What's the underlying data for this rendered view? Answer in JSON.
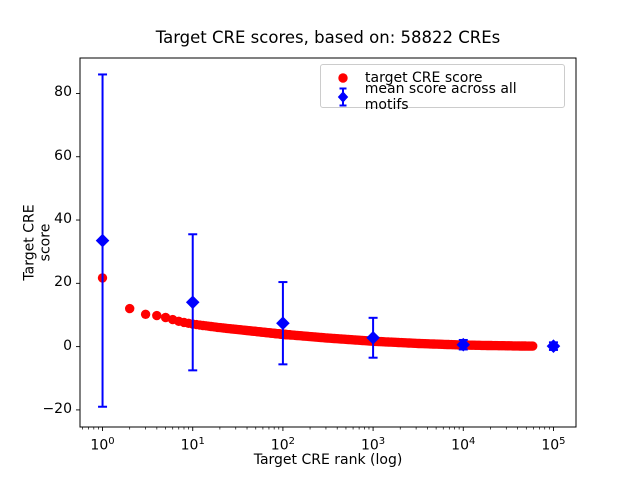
{
  "chart_data": {
    "type": "scatter",
    "title": "Target CRE scores, based on: 58822 CREs",
    "xlabel": "Target CRE rank (log)",
    "ylabel": "Target CRE score",
    "x_scale": "log10",
    "xlim_log10": [
      -0.25,
      5.25
    ],
    "ylim": [
      -25.4,
      91.2
    ],
    "grid": false,
    "legend_position": "upper right",
    "x_major_ticks": [
      {
        "value": 1,
        "mantissa": "10",
        "exponent": "0"
      },
      {
        "value": 10,
        "mantissa": "10",
        "exponent": "1"
      },
      {
        "value": 100,
        "mantissa": "10",
        "exponent": "2"
      },
      {
        "value": 1000,
        "mantissa": "10",
        "exponent": "3"
      },
      {
        "value": 10000,
        "mantissa": "10",
        "exponent": "4"
      },
      {
        "value": 100000,
        "mantissa": "10",
        "exponent": "5"
      }
    ],
    "y_ticks": [
      {
        "value": -20,
        "label": "−20"
      },
      {
        "value": 0,
        "label": "0"
      },
      {
        "value": 20,
        "label": "20"
      },
      {
        "value": 40,
        "label": "40"
      },
      {
        "value": 60,
        "label": "60"
      },
      {
        "value": 80,
        "label": "80"
      }
    ],
    "series": [
      {
        "name": "target CRE score",
        "type": "scatter",
        "marker": "circle",
        "color": "#ff0000",
        "marker_radius_px": 4.7,
        "rank_min": 1,
        "rank_max": 58822,
        "anchors_log10rank_score": [
          [
            0.0,
            21.7
          ],
          [
            0.301,
            12.0
          ],
          [
            0.477,
            10.2
          ],
          [
            0.602,
            9.8
          ],
          [
            0.699,
            9.2
          ],
          [
            0.845,
            8.0
          ],
          [
            1.0,
            7.1
          ],
          [
            1.3,
            6.0
          ],
          [
            1.7,
            4.8
          ],
          [
            2.0,
            3.9
          ],
          [
            2.5,
            2.7
          ],
          [
            3.0,
            1.7
          ],
          [
            3.5,
            1.0
          ],
          [
            4.0,
            0.5
          ],
          [
            4.4,
            0.3
          ],
          [
            4.7695,
            0.15
          ]
        ]
      },
      {
        "name": "mean score across all motifs",
        "type": "errorbar",
        "marker": "diamond",
        "color": "#0000ff",
        "points": [
          {
            "rank": 1,
            "mean": 33.5,
            "err": 52.5
          },
          {
            "rank": 10,
            "mean": 14.0,
            "err": 21.5
          },
          {
            "rank": 100,
            "mean": 7.4,
            "err": 13.0
          },
          {
            "rank": 1000,
            "mean": 2.8,
            "err": 6.3
          },
          {
            "rank": 10000,
            "mean": 0.6,
            "err": 1.5
          },
          {
            "rank": 100000,
            "mean": 0.15,
            "err": 1.2
          }
        ]
      }
    ]
  }
}
